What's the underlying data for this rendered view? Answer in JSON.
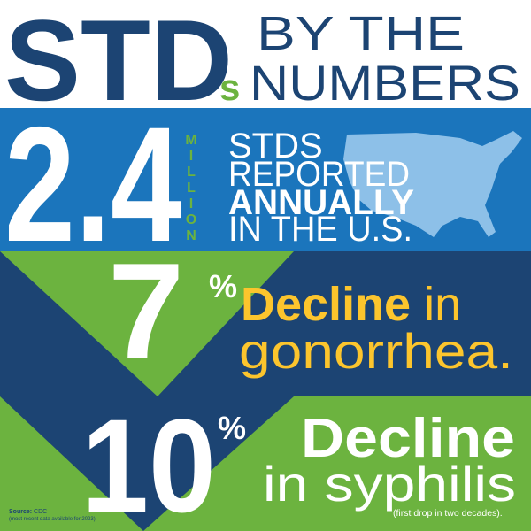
{
  "header": {
    "title": "STD",
    "title_suffix": "s",
    "subtitle_line1": "BY THE",
    "subtitle_line2": "NUMBERS"
  },
  "stat1": {
    "number": "2.4",
    "unit": "MILLION",
    "lines": [
      "STDS",
      "REPORTED",
      "ANNUALLY",
      "IN THE U.S."
    ]
  },
  "stat2": {
    "number": "7",
    "percent": "%",
    "line1_bold": "Decline",
    "line1_rest": " in",
    "line2": "gonorrhea."
  },
  "stat3": {
    "number": "10",
    "percent": "%",
    "line1": "Decline",
    "line2": "in syphilis",
    "note": "(first drop in two decades)."
  },
  "source": {
    "label": "Source:",
    "text": " CDC",
    "note": "(most recent data available for 2023)."
  }
}
